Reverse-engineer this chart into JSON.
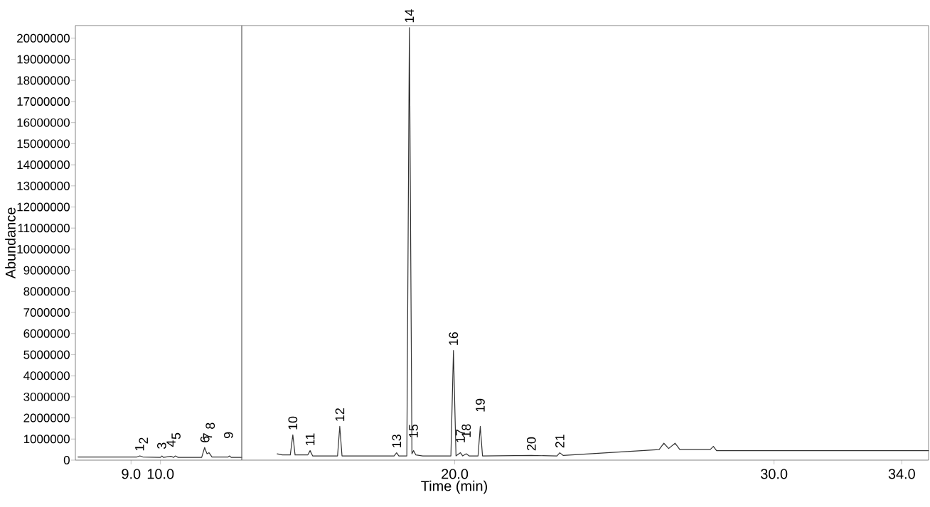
{
  "chart_data": [
    {
      "type": "line",
      "ylabel": "Abundance",
      "xlim": [
        7.11,
        12.76
      ],
      "ylim": [
        0,
        20600000
      ],
      "xticks": [
        {
          "value": 9,
          "label": "9.0"
        },
        {
          "value": 10,
          "label": "10.0"
        }
      ],
      "yticks": [
        0,
        1000000,
        2000000,
        3000000,
        4000000,
        5000000,
        6000000,
        7000000,
        8000000,
        9000000,
        10000000,
        11000000,
        12000000,
        13000000,
        14000000,
        15000000,
        16000000,
        17000000,
        18000000,
        19000000,
        20000000
      ],
      "series": [
        {
          "color": "#333333",
          "x": [
            7.2,
            9.2,
            9.3,
            9.4,
            10.0,
            10.05,
            10.1,
            10.35,
            10.45,
            10.5,
            10.6,
            11.4,
            11.5,
            11.58,
            11.65,
            11.75,
            12.3,
            12.35,
            12.4,
            12.76
          ],
          "values": [
            150000,
            150000,
            200000,
            150000,
            130000,
            200000,
            130000,
            180000,
            130000,
            200000,
            130000,
            130000,
            600000,
            300000,
            350000,
            150000,
            150000,
            200000,
            130000,
            130000
          ]
        }
      ],
      "annotations": [
        {
          "text": "1",
          "x": 9.29,
          "y": 200000
        },
        {
          "text": "2",
          "x": 9.42,
          "y": 150000
        },
        {
          "text": "3",
          "x": 10.04,
          "y": 200000
        },
        {
          "text": "4",
          "x": 10.36,
          "y": 180000
        },
        {
          "text": "5",
          "x": 10.53,
          "y": 200000
        },
        {
          "text": "6",
          "x": 11.51,
          "y": 600000
        },
        {
          "text": "7",
          "x": 11.6,
          "y": 300000
        },
        {
          "text": "8",
          "x": 11.69,
          "y": 350000
        },
        {
          "text": "9",
          "x": 12.31,
          "y": 200000
        }
      ]
    },
    {
      "type": "line",
      "xlabel": "Time (min)",
      "xlim": [
        13.33,
        34.84
      ],
      "ylim": [
        0,
        20600000
      ],
      "tick_labels": "x",
      "xticks": [
        {
          "value": 20,
          "label": "20.0"
        },
        {
          "value": 30,
          "label": "30.0"
        },
        {
          "value": 34,
          "label": "34.0"
        }
      ],
      "yticks": [
        0,
        1000000,
        2000000,
        3000000,
        4000000,
        5000000,
        6000000,
        7000000,
        8000000,
        9000000,
        10000000,
        11000000,
        12000000,
        13000000,
        14000000,
        15000000,
        16000000,
        17000000,
        18000000,
        19000000,
        20000000
      ],
      "series": [
        {
          "color": "#333333",
          "x": [
            14.44,
            14.6,
            14.85,
            14.93,
            15.0,
            15.4,
            15.47,
            15.55,
            16.33,
            16.4,
            16.47,
            18.1,
            18.18,
            18.25,
            18.5,
            18.58,
            18.66,
            18.71,
            18.78,
            19.0,
            19.88,
            19.96,
            20.04,
            20.18,
            20.25,
            20.36,
            20.45,
            20.73,
            20.8,
            20.87,
            22.4,
            23.2,
            23.29,
            23.4,
            26.4,
            26.55,
            26.7,
            26.9,
            27.05,
            28.0,
            28.1,
            28.2,
            34.84
          ],
          "values": [
            300000,
            250000,
            250000,
            1200000,
            250000,
            250000,
            450000,
            200000,
            200000,
            1600000,
            200000,
            200000,
            350000,
            200000,
            200000,
            20500000,
            300000,
            450000,
            250000,
            200000,
            200000,
            5200000,
            200000,
            350000,
            200000,
            300000,
            200000,
            200000,
            1600000,
            200000,
            220000,
            200000,
            350000,
            220000,
            500000,
            800000,
            550000,
            800000,
            500000,
            500000,
            650000,
            450000,
            450000
          ]
        }
      ],
      "annotations": [
        {
          "text": "10",
          "x": 14.93,
          "y": 1200000
        },
        {
          "text": "11",
          "x": 15.47,
          "y": 450000
        },
        {
          "text": "12",
          "x": 16.4,
          "y": 1600000
        },
        {
          "text": "13",
          "x": 18.18,
          "y": 350000
        },
        {
          "text": "14",
          "x": 18.58,
          "y": 20500000
        },
        {
          "text": "15",
          "x": 18.71,
          "y": 450000
        },
        {
          "text": "16",
          "x": 19.96,
          "y": 5200000
        },
        {
          "text": "17",
          "x": 20.18,
          "y": 350000
        },
        {
          "text": "18",
          "x": 20.36,
          "y": 300000
        },
        {
          "text": "19",
          "x": 20.8,
          "y": 1600000
        },
        {
          "text": "20",
          "x": 22.4,
          "y": 220000
        },
        {
          "text": "21",
          "x": 23.29,
          "y": 350000
        }
      ]
    }
  ]
}
